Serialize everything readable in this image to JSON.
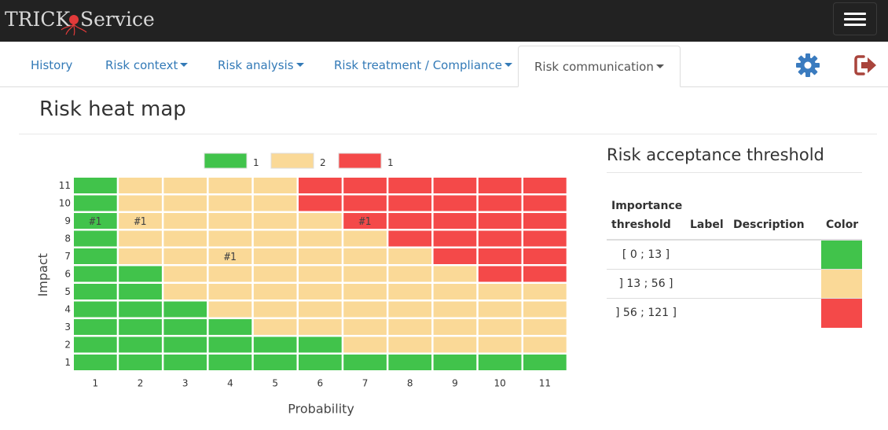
{
  "app": {
    "brand": "TRICK",
    "brand_suffix": "Service"
  },
  "nav": {
    "tabs": [
      {
        "label": "History",
        "dropdown": false,
        "active": false
      },
      {
        "label": "Risk context",
        "dropdown": true,
        "active": false
      },
      {
        "label": "Risk analysis",
        "dropdown": true,
        "active": false
      },
      {
        "label": "Risk treatment / Compliance",
        "dropdown": true,
        "active": false
      },
      {
        "label": "Risk communication",
        "dropdown": true,
        "active": true
      }
    ],
    "settings_icon": "gear-icon",
    "logout_icon": "sign-out-icon"
  },
  "page": {
    "title": "Risk heat map"
  },
  "colors": {
    "green": "#41c34b",
    "yellow": "#fad997",
    "red": "#f44949",
    "link": "#337ab7",
    "logout": "#a9443c",
    "settings": "#3a7bbf"
  },
  "chart_data": {
    "type": "heatmap",
    "title": "",
    "xlabel": "Probability",
    "ylabel": "Impact",
    "x": [
      1,
      2,
      3,
      4,
      5,
      6,
      7,
      8,
      9,
      10,
      11
    ],
    "y": [
      1,
      2,
      3,
      4,
      5,
      6,
      7,
      8,
      9,
      10,
      11
    ],
    "legend": [
      {
        "level": 1,
        "count": "1"
      },
      {
        "level": 2,
        "count": "2"
      },
      {
        "level": 3,
        "count": "1"
      }
    ],
    "legend_position": "top",
    "levels_by_impact": [
      [
        1,
        1,
        1,
        1,
        1,
        1,
        1,
        1,
        1,
        1,
        1
      ],
      [
        1,
        1,
        1,
        1,
        1,
        1,
        2,
        2,
        2,
        2,
        2
      ],
      [
        1,
        1,
        1,
        1,
        2,
        2,
        2,
        2,
        2,
        2,
        2
      ],
      [
        1,
        1,
        1,
        2,
        2,
        2,
        2,
        2,
        2,
        2,
        2
      ],
      [
        1,
        1,
        2,
        2,
        2,
        2,
        2,
        2,
        2,
        2,
        2
      ],
      [
        1,
        1,
        2,
        2,
        2,
        2,
        2,
        2,
        2,
        3,
        3
      ],
      [
        1,
        2,
        2,
        2,
        2,
        2,
        2,
        2,
        3,
        3,
        3
      ],
      [
        1,
        2,
        2,
        2,
        2,
        2,
        2,
        3,
        3,
        3,
        3
      ],
      [
        1,
        2,
        2,
        2,
        2,
        2,
        3,
        3,
        3,
        3,
        3
      ],
      [
        1,
        2,
        2,
        2,
        2,
        3,
        3,
        3,
        3,
        3,
        3
      ],
      [
        1,
        2,
        2,
        2,
        2,
        3,
        3,
        3,
        3,
        3,
        3
      ]
    ],
    "markers": [
      {
        "x": 1,
        "y": 9,
        "label": "#1"
      },
      {
        "x": 2,
        "y": 9,
        "label": "#1"
      },
      {
        "x": 7,
        "y": 9,
        "label": "#1"
      },
      {
        "x": 4,
        "y": 7,
        "label": "#1"
      }
    ]
  },
  "acceptance": {
    "title": "Risk acceptance threshold",
    "headers": {
      "threshold_line1": "Importance",
      "threshold_line2": "threshold",
      "label": "Label",
      "description": "Description",
      "color": "Color"
    },
    "rows": [
      {
        "range": "[ 0 ; 13 ]",
        "label": "",
        "description": "",
        "color": "#41c34b"
      },
      {
        "range": "] 13 ; 56 ]",
        "label": "",
        "description": "",
        "color": "#fad997"
      },
      {
        "range": "] 56 ; 121 ]",
        "label": "",
        "description": "",
        "color": "#f44949"
      }
    ]
  }
}
